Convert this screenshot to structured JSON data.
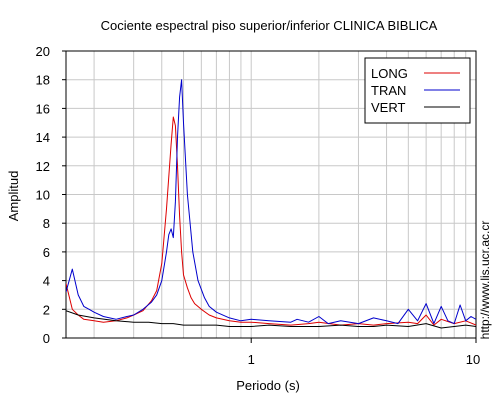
{
  "chart_data": {
    "type": "line",
    "title": "Cociente espectral piso superior/inferior  CLINICA BIBLICA",
    "xlabel": "Periodo (s)",
    "ylabel": "Amplitud",
    "x_scale": "log",
    "xlim": [
      0.15,
      10
    ],
    "ylim": [
      0,
      20
    ],
    "x_tick_values": [
      1,
      10
    ],
    "x_tick_labels": [
      "1",
      "10"
    ],
    "y_tick_values": [
      0,
      2,
      4,
      6,
      8,
      10,
      12,
      14,
      16,
      18,
      20
    ],
    "y_tick_labels": [
      "0",
      "2",
      "4",
      "6",
      "8",
      "10",
      "12",
      "14",
      "16",
      "18",
      "20"
    ],
    "grid": true,
    "legend_position": "top-right",
    "credit": "http://www.lis.ucr.ac.cr",
    "series": [
      {
        "name": "LONG",
        "color": "#dd0000",
        "x": [
          0.15,
          0.16,
          0.17,
          0.18,
          0.2,
          0.22,
          0.25,
          0.28,
          0.3,
          0.33,
          0.36,
          0.38,
          0.4,
          0.42,
          0.44,
          0.45,
          0.46,
          0.47,
          0.48,
          0.49,
          0.5,
          0.52,
          0.54,
          0.56,
          0.6,
          0.65,
          0.7,
          0.8,
          0.9,
          1.0,
          1.2,
          1.5,
          1.8,
          2.0,
          2.5,
          3.0,
          3.5,
          4.0,
          5.0,
          5.5,
          6.0,
          6.5,
          7.0,
          8.0,
          9.0,
          10.0
        ],
        "y": [
          3.8,
          2.0,
          1.6,
          1.3,
          1.2,
          1.1,
          1.2,
          1.4,
          1.6,
          1.9,
          2.6,
          3.3,
          5.2,
          9.0,
          13.5,
          15.4,
          14.8,
          12.0,
          8.5,
          6.0,
          4.4,
          3.5,
          2.8,
          2.4,
          2.0,
          1.6,
          1.4,
          1.2,
          1.1,
          1.1,
          1.0,
          0.9,
          1.0,
          1.1,
          0.9,
          1.0,
          0.9,
          1.0,
          1.1,
          1.0,
          1.6,
          0.9,
          1.3,
          1.0,
          1.2,
          0.9
        ]
      },
      {
        "name": "TRAN",
        "color": "#0000cc",
        "x": [
          0.15,
          0.16,
          0.17,
          0.18,
          0.19,
          0.2,
          0.22,
          0.25,
          0.28,
          0.3,
          0.33,
          0.36,
          0.38,
          0.4,
          0.42,
          0.43,
          0.44,
          0.45,
          0.46,
          0.47,
          0.48,
          0.49,
          0.5,
          0.52,
          0.55,
          0.58,
          0.62,
          0.65,
          0.7,
          0.8,
          0.9,
          1.0,
          1.2,
          1.5,
          1.6,
          1.8,
          2.0,
          2.2,
          2.5,
          3.0,
          3.5,
          4.0,
          4.5,
          5.0,
          5.5,
          6.0,
          6.5,
          7.0,
          7.5,
          8.0,
          8.5,
          9.0,
          9.5,
          10.0
        ],
        "y": [
          3.2,
          4.8,
          3.0,
          2.2,
          2.0,
          1.8,
          1.5,
          1.3,
          1.5,
          1.6,
          2.0,
          2.5,
          3.0,
          4.0,
          6.0,
          7.2,
          7.6,
          7.0,
          9.5,
          14.0,
          16.8,
          18.0,
          15.0,
          10.0,
          6.0,
          4.0,
          2.8,
          2.2,
          1.8,
          1.4,
          1.2,
          1.3,
          1.2,
          1.1,
          1.3,
          1.1,
          1.5,
          1.0,
          1.2,
          1.0,
          1.4,
          1.2,
          1.0,
          2.0,
          1.2,
          2.4,
          1.0,
          2.2,
          1.2,
          1.0,
          2.3,
          1.2,
          1.5,
          1.3
        ]
      },
      {
        "name": "VERT",
        "color": "#000000",
        "x": [
          0.15,
          0.17,
          0.2,
          0.25,
          0.3,
          0.35,
          0.4,
          0.45,
          0.5,
          0.6,
          0.7,
          0.8,
          0.9,
          1.0,
          1.2,
          1.5,
          2.0,
          2.5,
          3.0,
          3.5,
          4.0,
          5.0,
          6.0,
          7.0,
          8.0,
          9.0,
          10.0
        ],
        "y": [
          1.9,
          1.6,
          1.4,
          1.2,
          1.1,
          1.1,
          1.0,
          1.0,
          0.9,
          0.9,
          0.9,
          0.8,
          0.8,
          0.8,
          0.9,
          0.8,
          0.8,
          0.9,
          0.8,
          0.8,
          0.9,
          0.8,
          1.0,
          0.7,
          0.8,
          0.9,
          0.8
        ]
      }
    ]
  }
}
